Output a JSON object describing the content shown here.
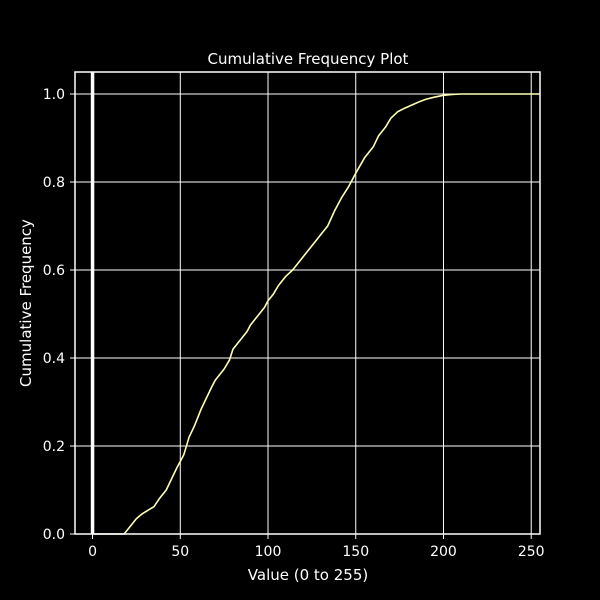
{
  "chart_data": {
    "type": "line",
    "title": "Cumulative Frequency Plot",
    "xlabel": "Value (0 to 255)",
    "ylabel": "Cumulative Frequency",
    "xlim": [
      -10,
      255
    ],
    "ylim": [
      0,
      1.05
    ],
    "xticks": [
      0,
      50,
      100,
      150,
      200,
      250
    ],
    "yticks": [
      0.0,
      0.2,
      0.4,
      0.6,
      0.8,
      1.0
    ],
    "xtick_labels": [
      "0",
      "50",
      "100",
      "150",
      "200",
      "250"
    ],
    "ytick_labels": [
      "0.0",
      "0.2",
      "0.4",
      "0.6",
      "0.8",
      "1.0"
    ],
    "grid": true,
    "vline_x": 0,
    "colors": {
      "background": "#000000",
      "axes": "#ffffff",
      "grid": "#ffffff",
      "line": "#ffffb3",
      "vline": "#ffffff"
    },
    "series": [
      {
        "x": [
          0,
          18,
          20,
          22,
          25,
          28,
          32,
          35,
          38,
          42,
          45,
          48,
          52,
          55,
          58,
          60,
          62,
          65,
          68,
          70,
          72,
          75,
          78,
          80,
          83,
          85,
          88,
          90,
          93,
          95,
          98,
          100,
          103,
          106,
          110,
          114,
          118,
          122,
          126,
          130,
          134,
          138,
          142,
          146,
          150,
          155,
          160,
          163,
          167,
          170,
          174,
          178,
          182,
          186,
          190,
          195,
          200,
          205,
          210,
          215,
          220,
          225,
          230,
          255
        ],
        "y": [
          0.0,
          0.0,
          0.01,
          0.02,
          0.035,
          0.045,
          0.055,
          0.062,
          0.08,
          0.1,
          0.125,
          0.15,
          0.18,
          0.22,
          0.245,
          0.265,
          0.285,
          0.31,
          0.335,
          0.35,
          0.36,
          0.375,
          0.395,
          0.42,
          0.435,
          0.445,
          0.46,
          0.475,
          0.49,
          0.5,
          0.515,
          0.53,
          0.545,
          0.565,
          0.585,
          0.6,
          0.62,
          0.64,
          0.66,
          0.68,
          0.7,
          0.735,
          0.765,
          0.79,
          0.82,
          0.855,
          0.88,
          0.905,
          0.925,
          0.945,
          0.96,
          0.968,
          0.975,
          0.982,
          0.988,
          0.993,
          0.997,
          0.999,
          1.0,
          1.0,
          1.0,
          1.0,
          1.0,
          1.0
        ]
      }
    ]
  }
}
